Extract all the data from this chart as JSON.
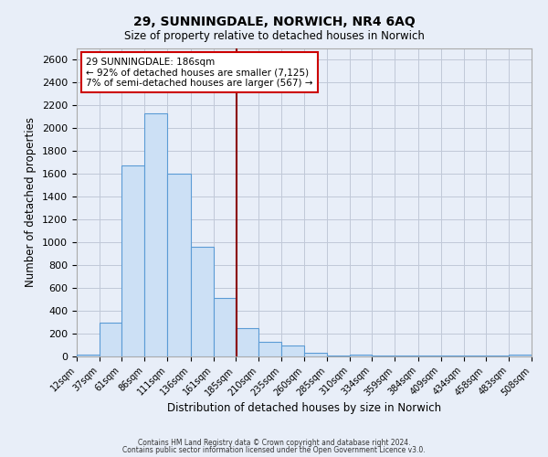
{
  "title_line1": "29, SUNNINGDALE, NORWICH, NR4 6AQ",
  "title_line2": "Size of property relative to detached houses in Norwich",
  "xlabel": "Distribution of detached houses by size in Norwich",
  "ylabel": "Number of detached properties",
  "bin_edges": [
    12,
    37,
    61,
    86,
    111,
    136,
    161,
    185,
    210,
    235,
    260,
    285,
    310,
    334,
    359,
    384,
    409,
    434,
    458,
    483,
    508
  ],
  "bin_labels": [
    "12sqm",
    "37sqm",
    "61sqm",
    "86sqm",
    "111sqm",
    "136sqm",
    "161sqm",
    "185sqm",
    "210sqm",
    "235sqm",
    "260sqm",
    "285sqm",
    "310sqm",
    "334sqm",
    "359sqm",
    "384sqm",
    "409sqm",
    "434sqm",
    "458sqm",
    "483sqm",
    "508sqm"
  ],
  "bar_heights": [
    20,
    300,
    1670,
    2130,
    1600,
    960,
    510,
    250,
    125,
    100,
    30,
    5,
    20,
    5,
    5,
    5,
    5,
    5,
    5,
    20
  ],
  "bar_color": "#cce0f5",
  "bar_edge_color": "#5b9bd5",
  "vline_x": 186,
  "vline_color": "#8b0000",
  "annotation_title": "29 SUNNINGDALE: 186sqm",
  "annotation_line1": "← 92% of detached houses are smaller (7,125)",
  "annotation_line2": "7% of semi-detached houses are larger (567) →",
  "annotation_box_color": "#ffffff",
  "annotation_box_edge_color": "#cc0000",
  "ylim": [
    0,
    2700
  ],
  "yticks": [
    0,
    200,
    400,
    600,
    800,
    1000,
    1200,
    1400,
    1600,
    1800,
    2000,
    2200,
    2400,
    2600
  ],
  "footer_line1": "Contains HM Land Registry data © Crown copyright and database right 2024.",
  "footer_line2": "Contains public sector information licensed under the Open Government Licence v3.0.",
  "bg_color": "#e8eef8",
  "grid_color": "#c0c8d8"
}
